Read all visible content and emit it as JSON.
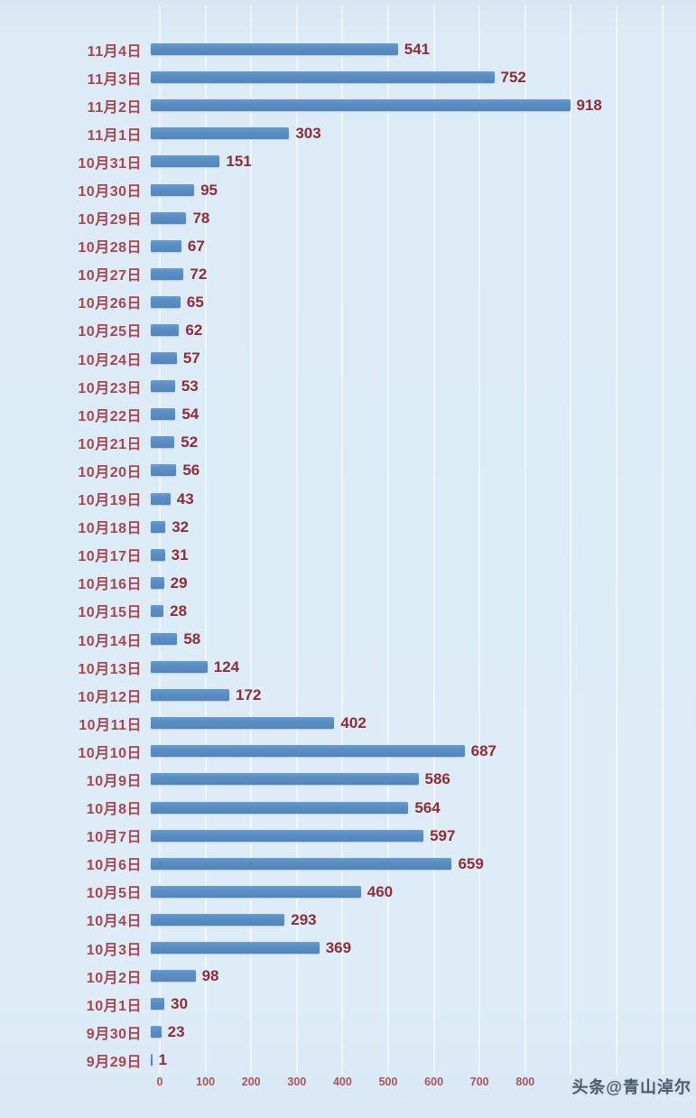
{
  "chart_data": {
    "type": "bar",
    "orientation": "horizontal",
    "title": "",
    "xlabel": "",
    "ylabel": "",
    "categories": [
      "11月4日",
      "11月3日",
      "11月2日",
      "11月1日",
      "10月31日",
      "10月30日",
      "10月29日",
      "10月28日",
      "10月27日",
      "10月26日",
      "10月25日",
      "10月24日",
      "10月23日",
      "10月22日",
      "10月21日",
      "10月20日",
      "10月19日",
      "10月18日",
      "10月17日",
      "10月16日",
      "10月15日",
      "10月14日",
      "10月13日",
      "10月12日",
      "10月11日",
      "10月10日",
      "10月9日",
      "10月8日",
      "10月7日",
      "10月6日",
      "10月5日",
      "10月4日",
      "10月3日",
      "10月2日",
      "10月1日",
      "9月30日",
      "9月29日"
    ],
    "values": [
      541,
      752,
      918,
      303,
      151,
      95,
      78,
      67,
      72,
      65,
      62,
      57,
      53,
      54,
      52,
      56,
      43,
      32,
      31,
      29,
      28,
      58,
      124,
      172,
      402,
      687,
      586,
      564,
      597,
      659,
      460,
      293,
      369,
      98,
      30,
      23,
      1
    ],
    "x_ticks": [
      0,
      100,
      200,
      300,
      400,
      500,
      600,
      700,
      800
    ],
    "xlim": [
      0,
      1170
    ],
    "grid": "vertical-gridlines-on",
    "legend": "none",
    "colors": {
      "bar": "#5b8fc4",
      "category_label": "#a8454e",
      "value_label": "#8e2d36",
      "axis_tick": "#a8545a",
      "background": "#dcebf6",
      "gridline": "#edf4fa"
    }
  },
  "watermark": {
    "text": "头条@青山淖尔"
  }
}
